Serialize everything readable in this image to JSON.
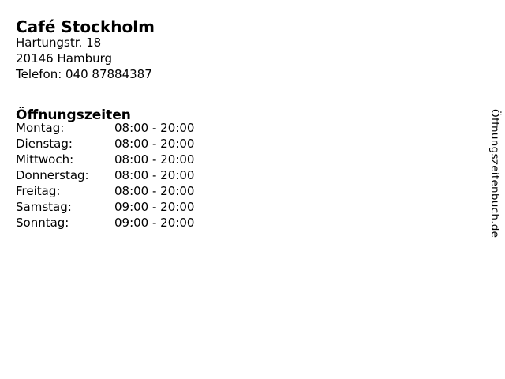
{
  "page": {
    "title": "Café Stockholm",
    "address": {
      "street": "Hartungstr. 18",
      "city": "20146 Hamburg",
      "phone": "Telefon: 040 87884387"
    },
    "hours_heading": "Öffnungszeiten",
    "hours": [
      {
        "day": "Montag:",
        "time": "08:00 - 20:00"
      },
      {
        "day": "Dienstag:",
        "time": "08:00 - 20:00"
      },
      {
        "day": "Mittwoch:",
        "time": "08:00 - 20:00"
      },
      {
        "day": "Donnerstag:",
        "time": "08:00 - 20:00"
      },
      {
        "day": "Freitag:",
        "time": "08:00 - 20:00"
      },
      {
        "day": "Samstag:",
        "time": "09:00 - 20:00"
      },
      {
        "day": "Sonntag:",
        "time": "09:00 - 20:00"
      }
    ],
    "watermark": "Öffnungszeitenbuch.de",
    "colors": {
      "text": "#000000",
      "background": "#ffffff"
    }
  }
}
